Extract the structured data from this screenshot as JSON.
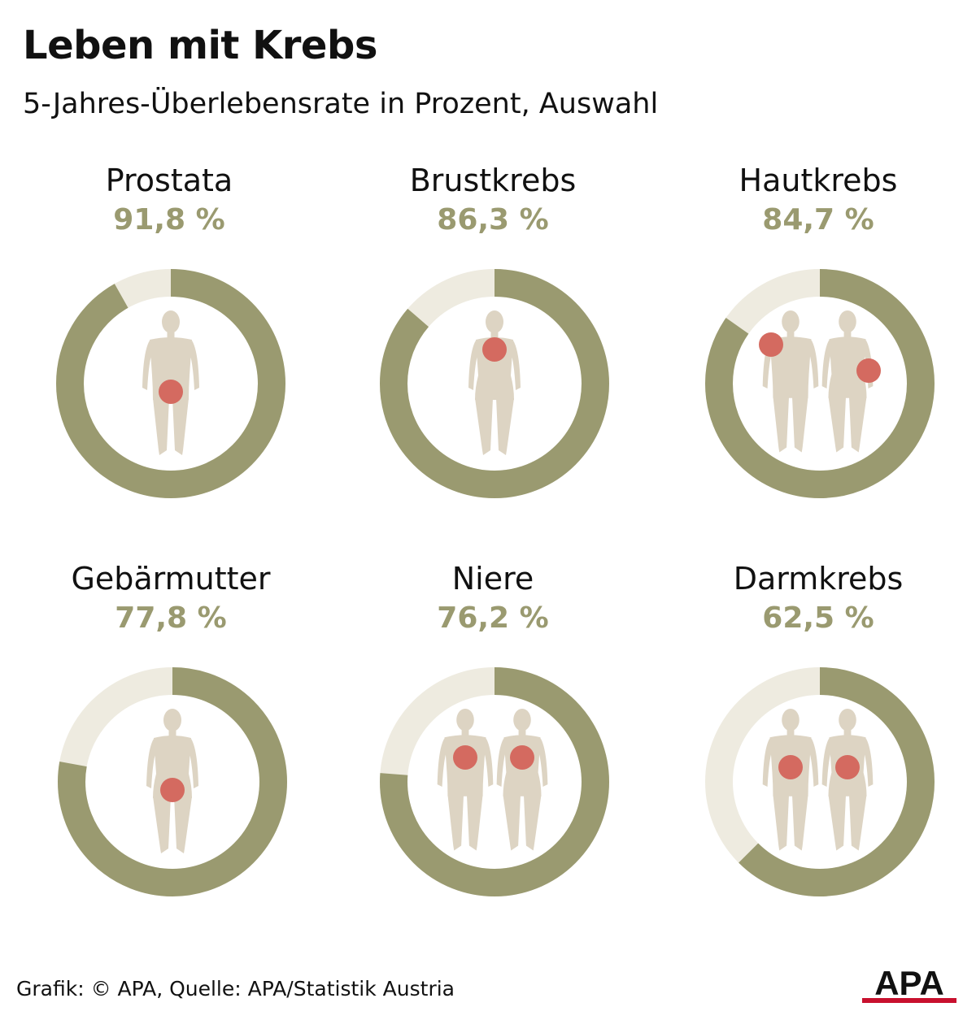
{
  "header": {
    "title": "Leben mit Krebs",
    "subtitle": "5-Jahres-Überlebensrate in Prozent, Auswahl"
  },
  "footer": {
    "source": "Grafik: © APA, Quelle: APA/Statistik Austria",
    "logo_text": "APA"
  },
  "colors": {
    "ring_filled": "#9a9a70",
    "ring_empty": "#eeebe0",
    "percent_text": "#9a9a70",
    "figure": "#ddd4c3",
    "marker": "#d46a60",
    "logo": "#111111",
    "logo_accent": "#c8102e"
  },
  "chart_data": {
    "type": "pie",
    "title": "Leben mit Krebs",
    "subtitle": "5-Jahres-Überlebensrate in Prozent, Auswahl",
    "unit": "%",
    "items": [
      {
        "label": "Prostata",
        "value": 91.8,
        "value_label": "91,8 %",
        "figures": 1,
        "marker_region": "pelvis",
        "icon": "male-figure-icon"
      },
      {
        "label": "Brustkrebs",
        "value": 86.3,
        "value_label": "86,3 %",
        "figures": 1,
        "marker_region": "chest",
        "icon": "female-figure-icon"
      },
      {
        "label": "Hautkrebs",
        "value": 84.7,
        "value_label": "84,7 %",
        "figures": 2,
        "marker_region": "skin",
        "icon": "two-figures-icon"
      },
      {
        "label": "Gebärmutter",
        "value": 77.8,
        "value_label": "77,8 %",
        "figures": 1,
        "marker_region": "pelvis",
        "icon": "female-figure-icon"
      },
      {
        "label": "Niere",
        "value": 76.2,
        "value_label": "76,2 %",
        "figures": 2,
        "marker_region": "abdomen",
        "icon": "two-figures-icon"
      },
      {
        "label": "Darmkrebs",
        "value": 62.5,
        "value_label": "62,5 %",
        "figures": 2,
        "marker_region": "lower-abdomen",
        "icon": "two-figures-icon"
      }
    ]
  }
}
